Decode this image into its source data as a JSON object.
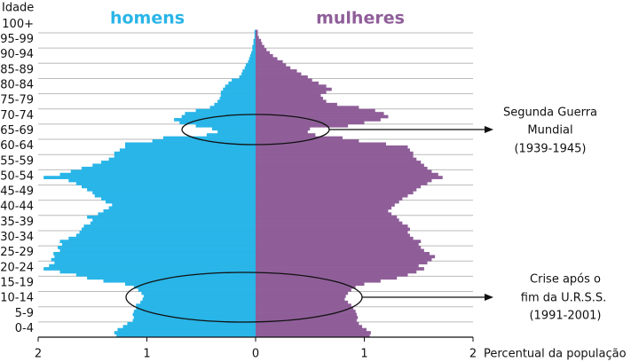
{
  "chart_data": {
    "type": "pyramid",
    "y_axis_label": "Idade",
    "x_axis_label": "Percentual da população",
    "categories": [
      "0-4",
      "5-9",
      "10-14",
      "15-19",
      "20-24",
      "25-29",
      "30-34",
      "35-39",
      "40-44",
      "45-49",
      "50-54",
      "55-59",
      "60-64",
      "65-69",
      "70-74",
      "75-79",
      "80-84",
      "85-89",
      "90-94",
      "95-99",
      "100+"
    ],
    "xlim": [
      -2,
      2
    ],
    "xticks": [
      {
        "value": -2,
        "label": "2"
      },
      {
        "value": -1,
        "label": "1"
      },
      0,
      1,
      2
    ],
    "series": [
      {
        "name": "homens",
        "color": "#29b5e8",
        "side": "left",
        "values": [
          [
            1.28,
            1.3,
            1.27,
            1.22,
            1.18
          ],
          [
            1.13,
            1.12,
            1.13,
            1.12,
            1.1
          ],
          [
            1.1,
            1.06,
            1.04,
            1.03,
            1.05
          ],
          [
            1.08,
            1.12,
            1.2,
            1.4,
            1.55
          ],
          [
            1.65,
            1.8,
            1.95,
            1.9,
            1.85
          ],
          [
            1.88,
            1.85,
            1.86,
            1.8,
            1.82
          ],
          [
            1.78,
            1.8,
            1.72,
            1.65,
            1.62
          ],
          [
            1.6,
            1.58,
            1.52,
            1.5,
            1.55
          ],
          [
            1.45,
            1.4,
            1.35,
            1.32,
            1.38
          ],
          [
            1.42,
            1.48,
            1.5,
            1.55,
            1.6
          ],
          [
            1.65,
            1.72,
            1.95,
            1.8,
            1.7
          ],
          [
            1.6,
            1.5,
            1.42,
            1.35,
            1.3
          ],
          [
            1.3,
            1.25,
            1.2,
            1.2,
            0.95
          ],
          [
            0.85,
            0.45,
            0.35,
            0.4,
            0.55
          ],
          [
            0.7,
            0.75,
            0.68,
            0.65,
            0.55
          ],
          [
            0.42,
            0.38,
            0.35,
            0.33,
            0.32
          ],
          [
            0.32,
            0.3,
            0.28,
            0.25,
            0.22
          ],
          [
            0.15,
            0.13,
            0.12,
            0.1,
            0.09
          ],
          [
            0.07,
            0.06,
            0.05,
            0.04,
            0.03
          ],
          [
            0.03,
            0.02,
            0.02,
            0.01,
            0.01
          ],
          [
            0.01
          ]
        ]
      },
      {
        "name": "mulheres",
        "color": "#8f5e99",
        "side": "right",
        "values": [
          [
            1.05,
            1.06,
            1.02,
            0.98,
            0.95
          ],
          [
            0.93,
            0.94,
            0.93,
            0.92,
            0.9
          ],
          [
            0.88,
            0.85,
            0.82,
            0.83,
            0.85
          ],
          [
            0.88,
            0.92,
            1.0,
            1.15,
            1.3
          ],
          [
            1.4,
            1.48,
            1.55,
            1.5,
            1.58
          ],
          [
            1.62,
            1.65,
            1.6,
            1.55,
            1.52
          ],
          [
            1.5,
            1.52,
            1.45,
            1.42,
            1.4
          ],
          [
            1.42,
            1.4,
            1.35,
            1.32,
            1.3
          ],
          [
            1.25,
            1.22,
            1.25,
            1.28,
            1.32
          ],
          [
            1.35,
            1.4,
            1.45,
            1.48,
            1.52
          ],
          [
            1.58,
            1.62,
            1.72,
            1.68,
            1.62
          ],
          [
            1.58,
            1.55,
            1.52,
            1.48,
            1.45
          ],
          [
            1.45,
            1.42,
            1.4,
            1.2,
            0.95
          ],
          [
            0.8,
            0.55,
            0.48,
            0.5,
            0.85
          ],
          [
            1.0,
            1.15,
            1.22,
            1.18,
            1.1
          ],
          [
            0.95,
            0.75,
            0.65,
            0.62,
            0.6
          ],
          [
            0.65,
            0.7,
            0.65,
            0.58,
            0.52
          ],
          [
            0.48,
            0.42,
            0.38,
            0.32,
            0.28
          ],
          [
            0.25,
            0.2,
            0.16,
            0.13,
            0.1
          ],
          [
            0.08,
            0.06,
            0.05,
            0.03,
            0.02
          ],
          [
            0.02
          ]
        ]
      }
    ],
    "annotations": [
      {
        "lines": [
          "Segunda Guerra",
          "Mundial",
          "(1939-1945)"
        ]
      },
      {
        "lines": [
          "Crise após o",
          "fim da U.R.S.S.",
          "(1991-2001)"
        ]
      }
    ]
  }
}
